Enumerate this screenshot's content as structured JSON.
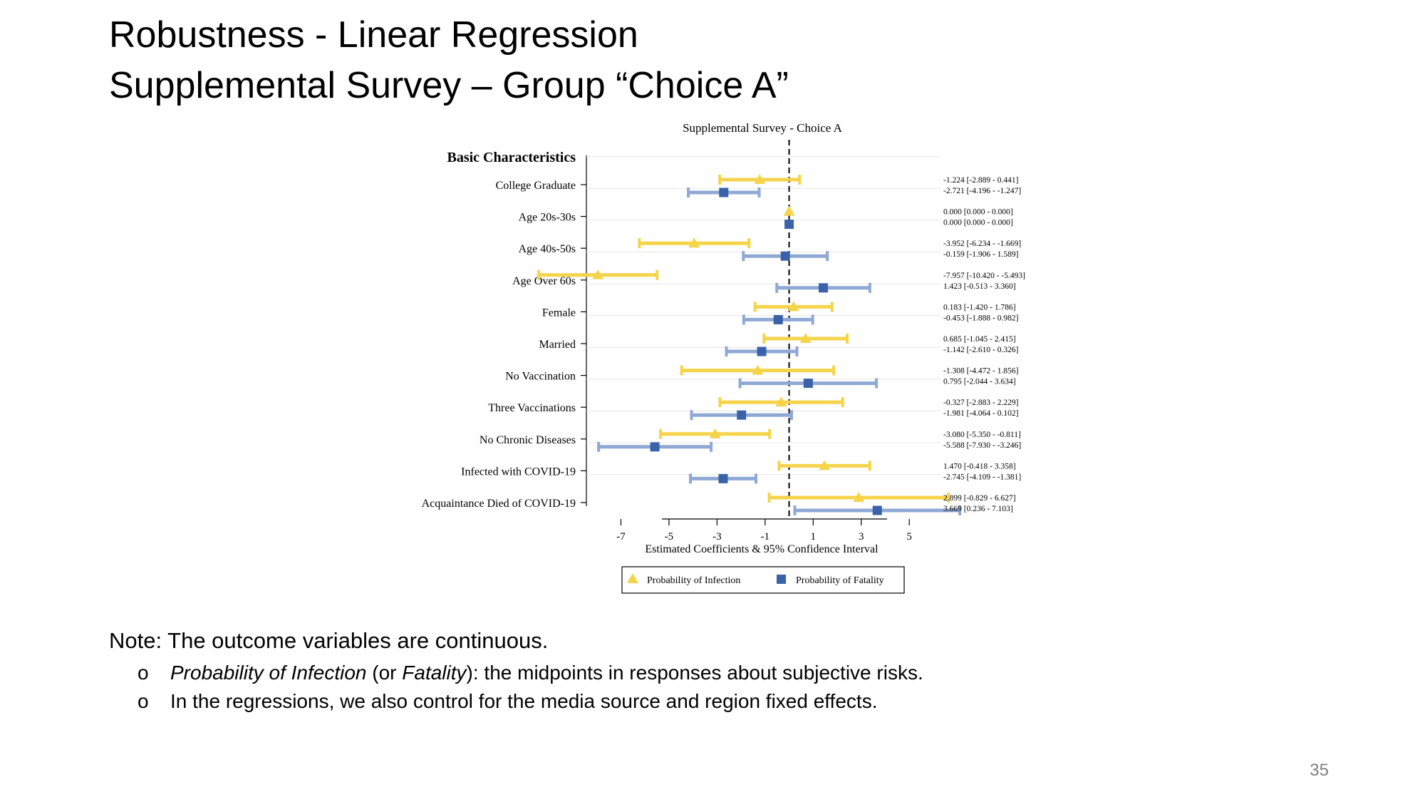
{
  "slide": {
    "title_line1": "Robustness - Linear Regression",
    "title_line2": "Supplemental Survey – Group “Choice A”",
    "note_heading": "Note: The outcome variables are continuous.",
    "bullet_marker": "o",
    "bullet1_italic1": "Probability of Infection",
    "bullet1_mid": " (or ",
    "bullet1_italic2": "Fatality",
    "bullet1_rest": "): the midpoints in responses about subjective risks.",
    "bullet2": "In the regressions, we also control for the media source and region fixed effects.",
    "page_number": "35"
  },
  "colors": {
    "infection": "#f5d44a",
    "fatality": "#3a62a8",
    "fatality_ci": "#8fa9d4"
  },
  "chart_data": {
    "type": "forest",
    "title": "Supplemental Survey - Choice A",
    "section_label": "Basic Characteristics",
    "xlabel": "Estimated Coefficients & 95% Confidence Interval",
    "xlim": [
      -8.2,
      6.3
    ],
    "xticks": [
      -7,
      -5,
      -3,
      -1,
      1,
      3,
      5
    ],
    "reference_line": 0,
    "legend": {
      "position": "bottom",
      "entries": [
        "Probability of Infection",
        "Probability of Fatality"
      ]
    },
    "categories": [
      "College Graduate",
      "Age 20s-30s",
      "Age 40s-50s",
      "Age Over 60s",
      "Female",
      "Married",
      "No Vaccination",
      "Three Vaccinations",
      "No Chronic Diseases",
      "Infected with COVID-19",
      "Acquaintance Died of COVID-19"
    ],
    "series": [
      {
        "name": "Probability of Infection",
        "marker": "triangle",
        "estimates": [
          -1.224,
          0.0,
          -3.952,
          -7.957,
          0.183,
          0.685,
          -1.308,
          -0.327,
          -3.08,
          1.47,
          2.899
        ],
        "ci_low": [
          -2.889,
          0.0,
          -6.234,
          -10.42,
          -1.42,
          -1.045,
          -4.472,
          -2.883,
          -5.35,
          -0.418,
          -0.829
        ],
        "ci_high": [
          0.441,
          0.0,
          -1.669,
          -5.493,
          1.786,
          2.415,
          1.856,
          2.229,
          -0.811,
          3.358,
          6.627
        ],
        "labels": [
          "-1.224  [-2.889 - 0.441]",
          "0.000  [0.000 - 0.000]",
          "-3.952  [-6.234 - -1.669]",
          "-7.957  [-10.420 - -5.493]",
          "0.183  [-1.420 - 1.786]",
          "0.685  [-1.045 - 2.415]",
          "-1.308  [-4.472 - 1.856]",
          "-0.327  [-2.883 - 2.229]",
          "-3.080  [-5.350 - -0.811]",
          "1.470  [-0.418 - 3.358]",
          "2.899  [-0.829 - 6.627]"
        ]
      },
      {
        "name": "Probability of Fatality",
        "marker": "square",
        "estimates": [
          -2.721,
          0.0,
          -0.159,
          1.423,
          -0.453,
          -1.142,
          0.795,
          -1.981,
          -5.588,
          -2.745,
          3.669
        ],
        "ci_low": [
          -4.196,
          0.0,
          -1.906,
          -0.513,
          -1.888,
          -2.61,
          -2.044,
          -4.064,
          -7.93,
          -4.109,
          0.236
        ],
        "ci_high": [
          -1.247,
          0.0,
          1.589,
          3.36,
          0.982,
          0.326,
          3.634,
          0.102,
          -3.246,
          -1.381,
          7.103
        ],
        "labels": [
          "-2.721  [-4.196 - -1.247]",
          "0.000  [0.000 - 0.000]",
          "-0.159  [-1.906 - 1.589]",
          "1.423  [-0.513 - 3.360]",
          "-0.453  [-1.888 - 0.982]",
          "-1.142  [-2.610 - 0.326]",
          "0.795  [-2.044 - 3.634]",
          "-1.981  [-4.064 - 0.102]",
          "-5.588  [-7.930 - -3.246]",
          "-2.745  [-4.109 - -1.381]",
          "3.669  [0.236 - 7.103]"
        ]
      }
    ]
  }
}
